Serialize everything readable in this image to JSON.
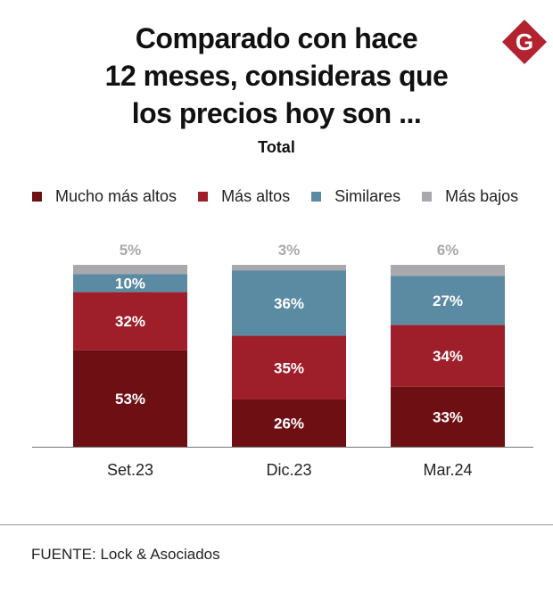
{
  "header": {
    "title_lines": [
      "Comparado con hace",
      "12 meses, consideras que",
      "los precios hoy son ..."
    ],
    "subtitle": "Total",
    "logo_letter": "G"
  },
  "colors": {
    "logo": "#b2232f"
  },
  "chart_data": {
    "type": "bar",
    "stacked": true,
    "title": "Comparado con hace 12 meses, consideras que los precios hoy son ...",
    "subtitle": "Total",
    "categories": [
      "Set.23",
      "Dic.23",
      "Mar.24"
    ],
    "series": [
      {
        "name": "Mucho más altos",
        "color": "#6d0f13",
        "values": [
          53,
          26,
          33
        ],
        "labels": [
          "53%",
          "26%",
          "33%"
        ]
      },
      {
        "name": "Más altos",
        "color": "#9e1e29",
        "values": [
          32,
          35,
          34
        ],
        "labels": [
          "32%",
          "35%",
          "34%"
        ]
      },
      {
        "name": "Similares",
        "color": "#5b8aa3",
        "values": [
          10,
          36,
          27
        ],
        "labels": [
          "10%",
          "36%",
          "27%"
        ]
      },
      {
        "name": "Más bajos",
        "color": "#a9a9ad",
        "values": [
          5,
          3,
          6
        ],
        "labels": [
          "5%",
          "3%",
          "6%"
        ]
      }
    ],
    "ylim": [
      0,
      100
    ],
    "legend_position": "top",
    "xlabel": "",
    "ylabel": ""
  },
  "footer": {
    "source": "FUENTE: Lock & Asociados"
  }
}
